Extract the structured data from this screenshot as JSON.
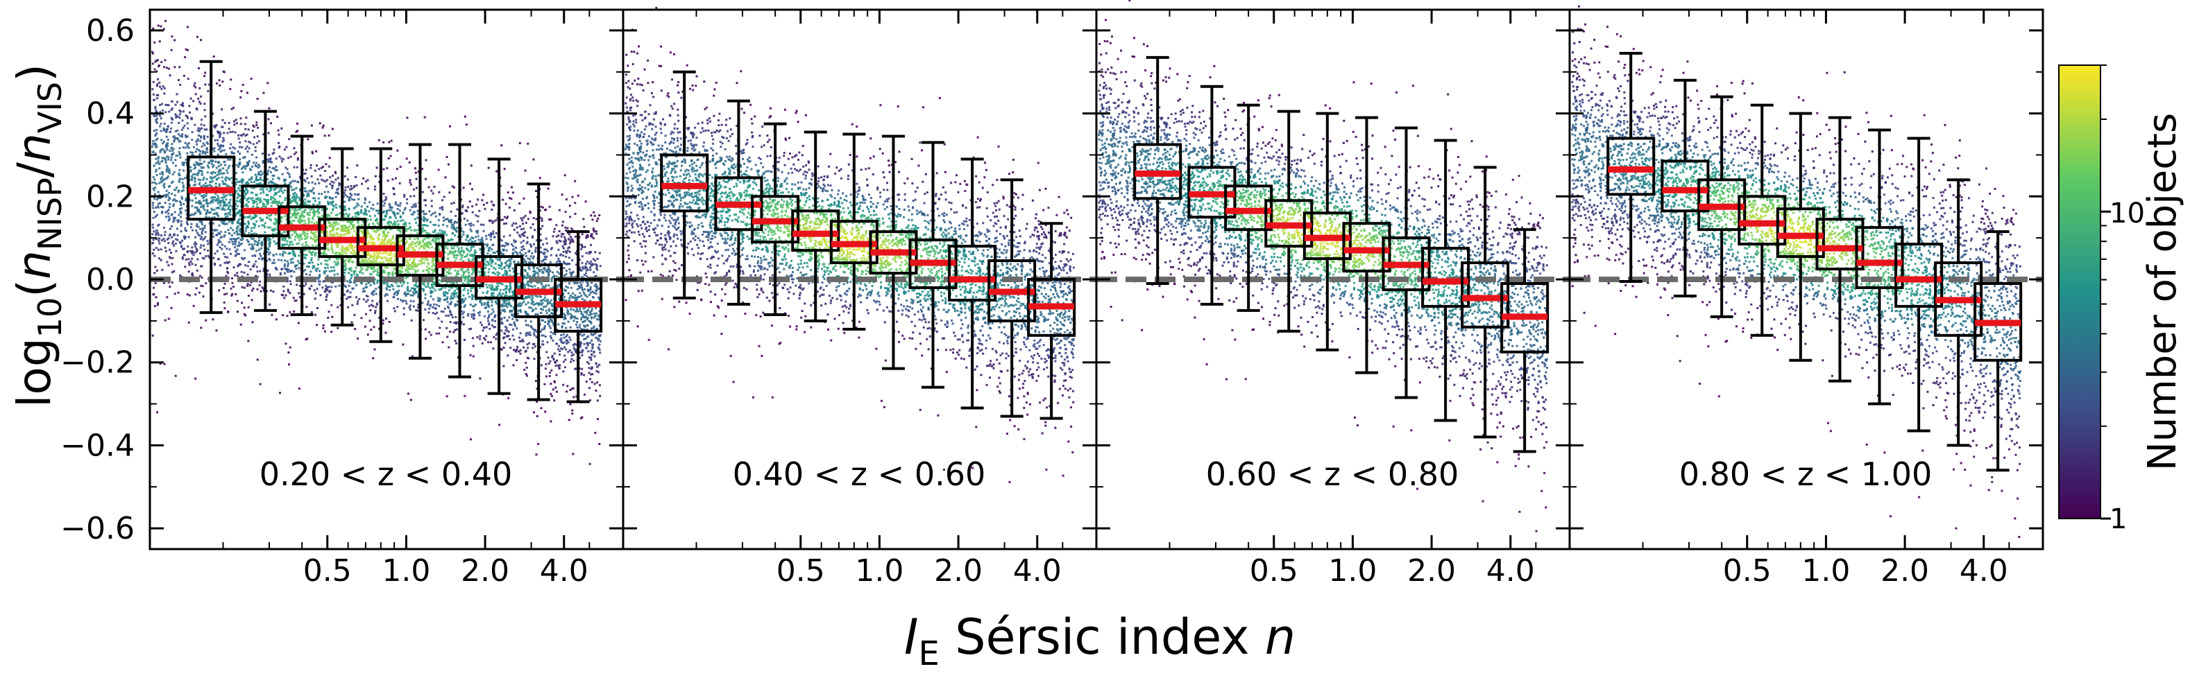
{
  "chart_data": {
    "type": "boxplot-over-density",
    "y_label": {
      "prefix": "log",
      "base": "10",
      "open": "(",
      "n1": "n",
      "sub1": "NISP",
      "slash": "/",
      "n2": "n",
      "sub2": "VIS",
      "close": ")"
    },
    "x_label": {
      "i": "I",
      "sub": "E",
      "rest": " Sérsic index ",
      "n": "n"
    },
    "ylim": [
      -0.65,
      0.65
    ],
    "y_ticks": [
      "0.6",
      "0.4",
      "0.2",
      "0.0",
      "−0.2",
      "−0.4",
      "−0.6"
    ],
    "y_tick_values": [
      0.6,
      0.4,
      0.2,
      0.0,
      -0.2,
      -0.4,
      -0.6
    ],
    "x_ticks": [
      "0.5",
      "1.0",
      "2.0",
      "4.0"
    ],
    "x_tick_values": [
      0.5,
      1.0,
      2.0,
      4.0
    ],
    "xlim_log2": [
      -3.25,
      2.75
    ],
    "reference_line_y": 0.0,
    "colorbar": {
      "label": "Number of objects",
      "scale": "log",
      "range": [
        1,
        30
      ],
      "ticks": [
        "10",
        "1"
      ],
      "tick_values": [
        10,
        1
      ],
      "colors": [
        "#440154",
        "#3b528b",
        "#21918c",
        "#5ec962",
        "#fde725"
      ]
    },
    "panels": [
      {
        "label": "0.20 < z < 0.40",
        "boxes": [
          {
            "n": 0.18,
            "whislo": -0.08,
            "q1": 0.145,
            "med": 0.215,
            "q3": 0.295,
            "whishi": 0.525
          },
          {
            "n": 0.29,
            "whislo": -0.075,
            "q1": 0.105,
            "med": 0.165,
            "q3": 0.225,
            "whishi": 0.405
          },
          {
            "n": 0.4,
            "whislo": -0.085,
            "q1": 0.075,
            "med": 0.125,
            "q3": 0.175,
            "whishi": 0.345
          },
          {
            "n": 0.57,
            "whislo": -0.11,
            "q1": 0.055,
            "med": 0.095,
            "q3": 0.145,
            "whishi": 0.315
          },
          {
            "n": 0.8,
            "whislo": -0.15,
            "q1": 0.035,
            "med": 0.075,
            "q3": 0.125,
            "whishi": 0.315
          },
          {
            "n": 1.13,
            "whislo": -0.19,
            "q1": 0.01,
            "med": 0.06,
            "q3": 0.105,
            "whishi": 0.325
          },
          {
            "n": 1.6,
            "whislo": -0.235,
            "q1": -0.015,
            "med": 0.035,
            "q3": 0.085,
            "whishi": 0.325
          },
          {
            "n": 2.26,
            "whislo": -0.275,
            "q1": -0.045,
            "med": 0.0,
            "q3": 0.055,
            "whishi": 0.29
          },
          {
            "n": 3.2,
            "whislo": -0.29,
            "q1": -0.09,
            "med": -0.03,
            "q3": 0.035,
            "whishi": 0.23
          },
          {
            "n": 4.53,
            "whislo": -0.295,
            "q1": -0.125,
            "med": -0.06,
            "q3": 0.0,
            "whishi": 0.115
          }
        ]
      },
      {
        "label": "0.40 < z < 0.60",
        "boxes": [
          {
            "n": 0.18,
            "whislo": -0.045,
            "q1": 0.165,
            "med": 0.225,
            "q3": 0.3,
            "whishi": 0.5
          },
          {
            "n": 0.29,
            "whislo": -0.06,
            "q1": 0.12,
            "med": 0.18,
            "q3": 0.245,
            "whishi": 0.43
          },
          {
            "n": 0.4,
            "whislo": -0.085,
            "q1": 0.09,
            "med": 0.14,
            "q3": 0.2,
            "whishi": 0.375
          },
          {
            "n": 0.57,
            "whislo": -0.1,
            "q1": 0.07,
            "med": 0.11,
            "q3": 0.165,
            "whishi": 0.355
          },
          {
            "n": 0.8,
            "whislo": -0.12,
            "q1": 0.04,
            "med": 0.085,
            "q3": 0.14,
            "whishi": 0.35
          },
          {
            "n": 1.13,
            "whislo": -0.215,
            "q1": 0.015,
            "med": 0.065,
            "q3": 0.115,
            "whishi": 0.345
          },
          {
            "n": 1.6,
            "whislo": -0.26,
            "q1": -0.02,
            "med": 0.04,
            "q3": 0.095,
            "whishi": 0.33
          },
          {
            "n": 2.26,
            "whislo": -0.31,
            "q1": -0.05,
            "med": 0.0,
            "q3": 0.08,
            "whishi": 0.29
          },
          {
            "n": 3.2,
            "whislo": -0.33,
            "q1": -0.1,
            "med": -0.03,
            "q3": 0.045,
            "whishi": 0.24
          },
          {
            "n": 4.53,
            "whislo": -0.335,
            "q1": -0.135,
            "med": -0.065,
            "q3": 0.0,
            "whishi": 0.135
          }
        ]
      },
      {
        "label": "0.60 < z < 0.80",
        "boxes": [
          {
            "n": 0.18,
            "whislo": -0.01,
            "q1": 0.195,
            "med": 0.255,
            "q3": 0.325,
            "whishi": 0.535
          },
          {
            "n": 0.29,
            "whislo": -0.06,
            "q1": 0.15,
            "med": 0.205,
            "q3": 0.27,
            "whishi": 0.465
          },
          {
            "n": 0.4,
            "whislo": -0.075,
            "q1": 0.12,
            "med": 0.165,
            "q3": 0.225,
            "whishi": 0.42
          },
          {
            "n": 0.57,
            "whislo": -0.125,
            "q1": 0.08,
            "med": 0.13,
            "q3": 0.19,
            "whishi": 0.405
          },
          {
            "n": 0.8,
            "whislo": -0.17,
            "q1": 0.05,
            "med": 0.1,
            "q3": 0.16,
            "whishi": 0.4
          },
          {
            "n": 1.13,
            "whislo": -0.225,
            "q1": 0.02,
            "med": 0.07,
            "q3": 0.135,
            "whishi": 0.39
          },
          {
            "n": 1.6,
            "whislo": -0.285,
            "q1": -0.025,
            "med": 0.035,
            "q3": 0.1,
            "whishi": 0.365
          },
          {
            "n": 2.26,
            "whislo": -0.34,
            "q1": -0.065,
            "med": -0.005,
            "q3": 0.075,
            "whishi": 0.335
          },
          {
            "n": 3.2,
            "whislo": -0.38,
            "q1": -0.115,
            "med": -0.045,
            "q3": 0.04,
            "whishi": 0.27
          },
          {
            "n": 4.53,
            "whislo": -0.415,
            "q1": -0.175,
            "med": -0.09,
            "q3": -0.01,
            "whishi": 0.12
          }
        ]
      },
      {
        "label": "0.80 < z < 1.00",
        "boxes": [
          {
            "n": 0.18,
            "whislo": -0.005,
            "q1": 0.205,
            "med": 0.265,
            "q3": 0.34,
            "whishi": 0.545
          },
          {
            "n": 0.29,
            "whislo": -0.04,
            "q1": 0.165,
            "med": 0.215,
            "q3": 0.285,
            "whishi": 0.48
          },
          {
            "n": 0.4,
            "whislo": -0.09,
            "q1": 0.12,
            "med": 0.175,
            "q3": 0.24,
            "whishi": 0.44
          },
          {
            "n": 0.57,
            "whislo": -0.135,
            "q1": 0.085,
            "med": 0.135,
            "q3": 0.2,
            "whishi": 0.42
          },
          {
            "n": 0.8,
            "whislo": -0.195,
            "q1": 0.055,
            "med": 0.105,
            "q3": 0.17,
            "whishi": 0.4
          },
          {
            "n": 1.13,
            "whislo": -0.245,
            "q1": 0.025,
            "med": 0.075,
            "q3": 0.145,
            "whishi": 0.39
          },
          {
            "n": 1.6,
            "whislo": -0.3,
            "q1": -0.02,
            "med": 0.04,
            "q3": 0.125,
            "whishi": 0.36
          },
          {
            "n": 2.26,
            "whislo": -0.365,
            "q1": -0.065,
            "med": 0.0,
            "q3": 0.085,
            "whishi": 0.34
          },
          {
            "n": 3.2,
            "whislo": -0.4,
            "q1": -0.135,
            "med": -0.05,
            "q3": 0.04,
            "whishi": 0.24
          },
          {
            "n": 4.53,
            "whislo": -0.46,
            "q1": -0.195,
            "med": -0.105,
            "q3": -0.01,
            "whishi": 0.115
          }
        ]
      }
    ]
  }
}
